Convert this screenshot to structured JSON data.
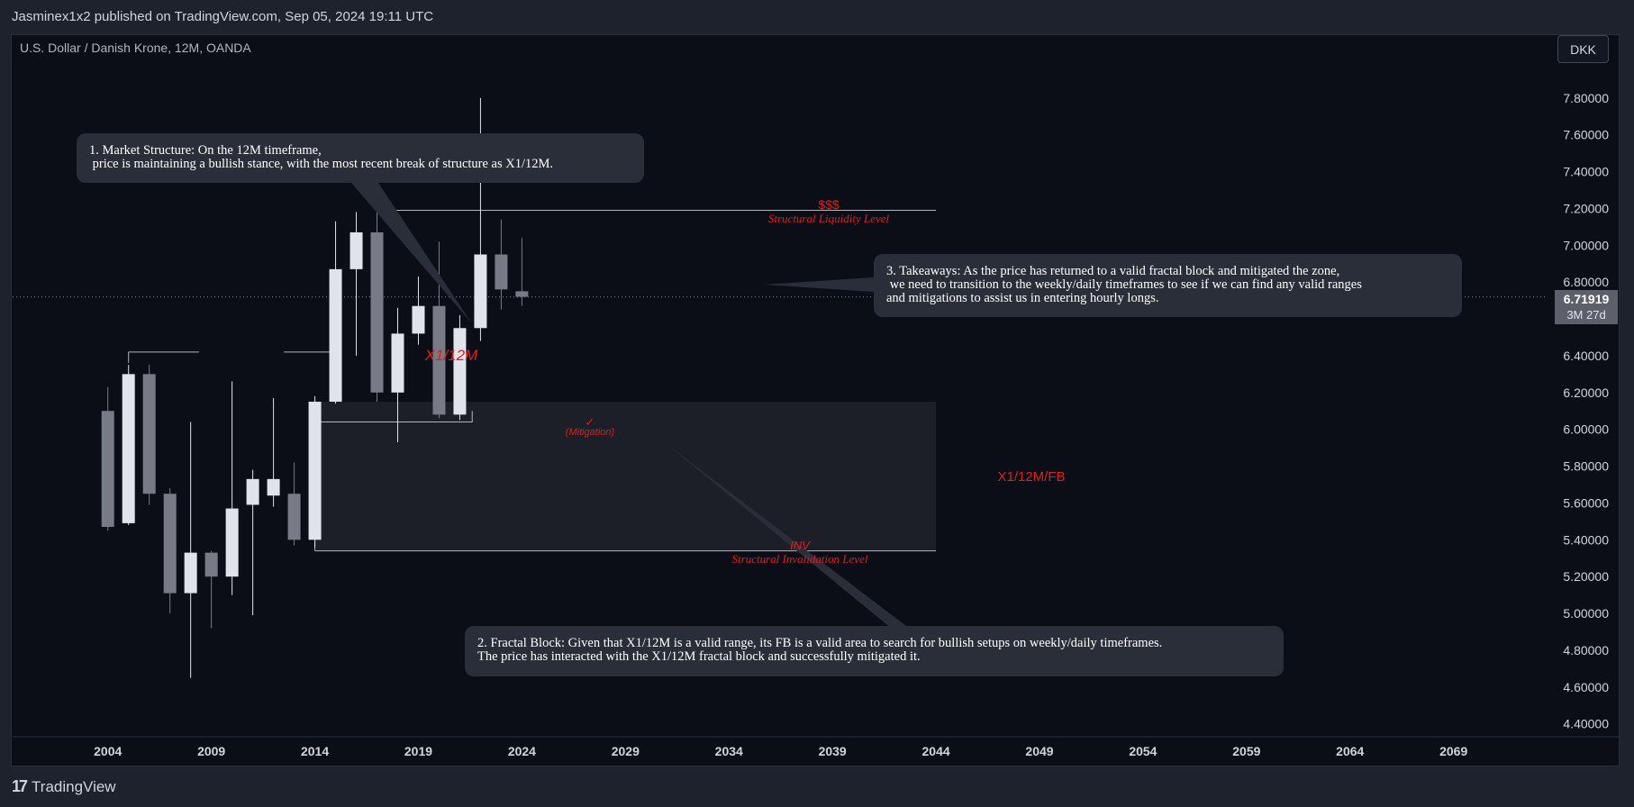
{
  "header": {
    "published": "Jasminex1x2 published on TradingView.com, Sep 05, 2024 19:11 UTC"
  },
  "chart_header": {
    "symbol": "U.S. Dollar / Danish Krone, 12M, OANDA",
    "currency_button": "DKK"
  },
  "price_tag": {
    "value": "6.71919",
    "countdown": "3M 27d"
  },
  "footer": {
    "logo": "17",
    "brand": "TradingView"
  },
  "annotations": {
    "note1": "1. Market Structure: On the 12M timeframe,\n price is maintaining a bullish stance, with the most recent break of structure as X1/12M.",
    "note2": "2. Fractal Block: Given that X1/12M is a valid range, its FB is a valid area to search for bullish setups on weekly/daily timeframes.\nThe price has interacted with the X1/12M fractal block and successfully mitigated it.",
    "note3": "3. Takeaways: As the price has returned to a valid fractal block and mitigated the zone,\n we need to transition to the weekly/daily timeframes to see if we can find any valid ranges\nand mitigations to assist us in entering hourly longs.",
    "x1_label": "X1/12M",
    "dollar_label": "$$$",
    "liquidity_label": "Structural Liquidity Level",
    "mitigation_check": "✓",
    "mitigation_label": "(Mitigation)",
    "fb_label": "X1/12M/FB",
    "inv_label": "INV",
    "invalidation_label": "Structural Invalidation Level"
  },
  "colors": {
    "background": "#0b0e17",
    "bull": "#e0e3eb",
    "bear": "#787b86",
    "annotation_red": "#e01e1e",
    "zone": "#1c1f27"
  },
  "chart_data": {
    "type": "candlestick",
    "title": "U.S. Dollar / Danish Krone, 12M, OANDA",
    "x_ticks": [
      "2004",
      "2009",
      "2014",
      "2019",
      "2024",
      "2029",
      "2034",
      "2039",
      "2044",
      "2049",
      "2054",
      "2059",
      "2064",
      "2069"
    ],
    "y_ticks": [
      "7.80000",
      "7.60000",
      "7.40000",
      "7.20000",
      "7.00000",
      "6.80000",
      "6.40000",
      "6.20000",
      "6.00000",
      "5.80000",
      "5.60000",
      "5.40000",
      "5.20000",
      "5.00000",
      "4.80000",
      "4.60000",
      "4.40000"
    ],
    "ylim": [
      4.33,
      7.98
    ],
    "xlim": [
      1999.4,
      2073.8
    ],
    "candles": [
      {
        "year": 2004,
        "open": 6.1,
        "high": 6.23,
        "low": 5.45,
        "close": 5.47
      },
      {
        "year": 2005,
        "open": 5.49,
        "high": 6.35,
        "low": 5.48,
        "close": 6.3
      },
      {
        "year": 2006,
        "open": 6.3,
        "high": 6.35,
        "low": 5.59,
        "close": 5.65
      },
      {
        "year": 2007,
        "open": 5.65,
        "high": 5.68,
        "low": 5.0,
        "close": 5.11
      },
      {
        "year": 2008,
        "open": 5.11,
        "high": 6.04,
        "low": 4.65,
        "close": 5.33
      },
      {
        "year": 2009,
        "open": 5.33,
        "high": 5.34,
        "low": 4.92,
        "close": 5.2
      },
      {
        "year": 2010,
        "open": 5.2,
        "high": 6.26,
        "low": 5.1,
        "close": 5.57
      },
      {
        "year": 2011,
        "open": 5.59,
        "high": 5.78,
        "low": 4.99,
        "close": 5.73
      },
      {
        "year": 2012,
        "open": 5.64,
        "high": 6.17,
        "low": 5.58,
        "close": 5.73
      },
      {
        "year": 2013,
        "open": 5.65,
        "high": 5.82,
        "low": 5.37,
        "close": 5.4
      },
      {
        "year": 2014,
        "open": 5.4,
        "high": 6.18,
        "low": 5.36,
        "close": 6.15
      },
      {
        "year": 2015,
        "open": 6.15,
        "high": 7.13,
        "low": 6.14,
        "close": 6.87
      },
      {
        "year": 2016,
        "open": 6.87,
        "high": 7.18,
        "low": 6.4,
        "close": 7.07
      },
      {
        "year": 2017,
        "open": 7.07,
        "high": 7.18,
        "low": 6.15,
        "close": 6.2
      },
      {
        "year": 2018,
        "open": 6.2,
        "high": 6.66,
        "low": 5.93,
        "close": 6.52
      },
      {
        "year": 2019,
        "open": 6.52,
        "high": 6.83,
        "low": 6.46,
        "close": 6.67
      },
      {
        "year": 2020,
        "open": 6.67,
        "high": 7.02,
        "low": 6.06,
        "close": 6.08
      },
      {
        "year": 2021,
        "open": 6.08,
        "high": 6.62,
        "low": 6.05,
        "close": 6.55
      },
      {
        "year": 2022,
        "open": 6.55,
        "high": 7.8,
        "low": 6.48,
        "close": 6.95
      },
      {
        "year": 2023,
        "open": 6.95,
        "high": 7.14,
        "low": 6.65,
        "close": 6.76
      },
      {
        "year": 2024,
        "open": 6.75,
        "high": 7.04,
        "low": 6.67,
        "close": 6.72
      }
    ],
    "levels": [
      {
        "name": "Structural Liquidity Level",
        "price": 7.19
      },
      {
        "name": "Structural Invalidation Level",
        "price": 5.34
      },
      {
        "name": "X1/12M",
        "price": 6.42
      },
      {
        "name": "Last price",
        "price": 6.71919
      }
    ],
    "zones": [
      {
        "name": "X1/12M/FB",
        "from_year": 2014,
        "to_year": 2044,
        "low": 5.34,
        "high": 6.15
      }
    ]
  }
}
